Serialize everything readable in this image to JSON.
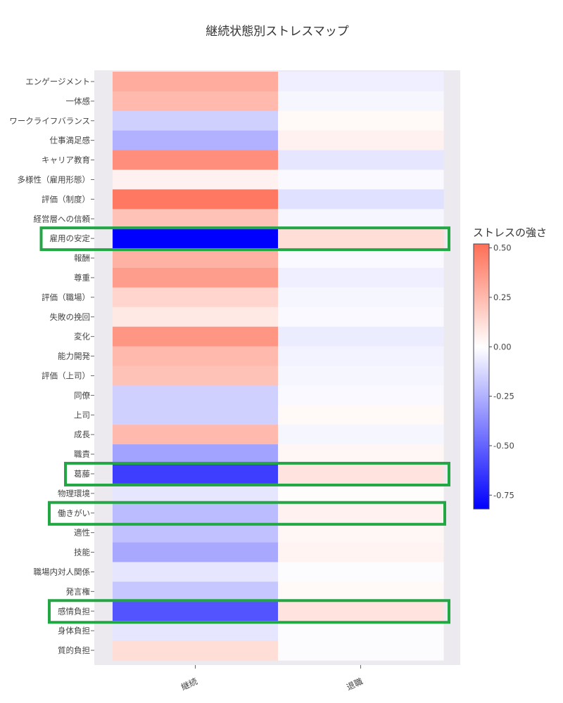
{
  "chart_data": {
    "type": "heatmap",
    "title": "継続状態別ストレスマップ",
    "x_categories": [
      "継続",
      "退職"
    ],
    "y_categories": [
      "エンゲージメント",
      "一体感",
      "ワークライフバランス",
      "仕事満足感",
      "キャリア教育",
      "多様性（雇用形態）",
      "評価（制度）",
      "経営層への信頼",
      "雇用の安定",
      "報酬",
      "尊重",
      "評価（職場）",
      "失敗の挽回",
      "変化",
      "能力開発",
      "評価（上司）",
      "同僚",
      "上司",
      "成長",
      "職責",
      "葛藤",
      "物理環境",
      "働きがい",
      "適性",
      "技能",
      "職場内対人関係",
      "発言権",
      "感情負担",
      "身体負担",
      "質的負担"
    ],
    "values": [
      [
        0.3,
        -0.05
      ],
      [
        0.25,
        -0.03
      ],
      [
        -0.15,
        0.02
      ],
      [
        -0.25,
        0.05
      ],
      [
        0.4,
        -0.08
      ],
      [
        0.05,
        -0.02
      ],
      [
        0.48,
        -0.1
      ],
      [
        0.22,
        -0.03
      ],
      [
        -0.82,
        0.12
      ],
      [
        0.28,
        -0.02
      ],
      [
        0.35,
        -0.05
      ],
      [
        0.15,
        -0.03
      ],
      [
        0.08,
        -0.02
      ],
      [
        0.38,
        -0.06
      ],
      [
        0.25,
        -0.04
      ],
      [
        0.22,
        -0.03
      ],
      [
        -0.15,
        -0.02
      ],
      [
        -0.15,
        0.02
      ],
      [
        0.25,
        -0.03
      ],
      [
        -0.3,
        0.03
      ],
      [
        -0.62,
        0.1
      ],
      [
        -0.08,
        0.01
      ],
      [
        -0.22,
        0.05
      ],
      [
        -0.2,
        0.03
      ],
      [
        -0.28,
        0.04
      ],
      [
        -0.08,
        -0.01
      ],
      [
        -0.18,
        0.02
      ],
      [
        -0.55,
        0.1
      ],
      [
        -0.08,
        -0.01
      ],
      [
        0.12,
        -0.01
      ]
    ],
    "zmin": -0.82,
    "zmax": 0.52,
    "colorscale": [
      "#0000ff",
      "#ffffff",
      "#ff6e55"
    ],
    "colorbar": {
      "title": "ストレスの強さ",
      "ticks": [
        0.5,
        0.25,
        0,
        -0.25,
        -0.5,
        -0.75
      ],
      "tick_labels": [
        "0.50",
        "0.25",
        "0.00",
        "-0.25",
        "-0.50",
        "-0.75"
      ]
    },
    "highlighted_rows": [
      "雇用の安定",
      "葛藤",
      "働きがい",
      "感情負担"
    ],
    "highlight_color": "#23a745",
    "plot_background": "#ece9ef"
  }
}
